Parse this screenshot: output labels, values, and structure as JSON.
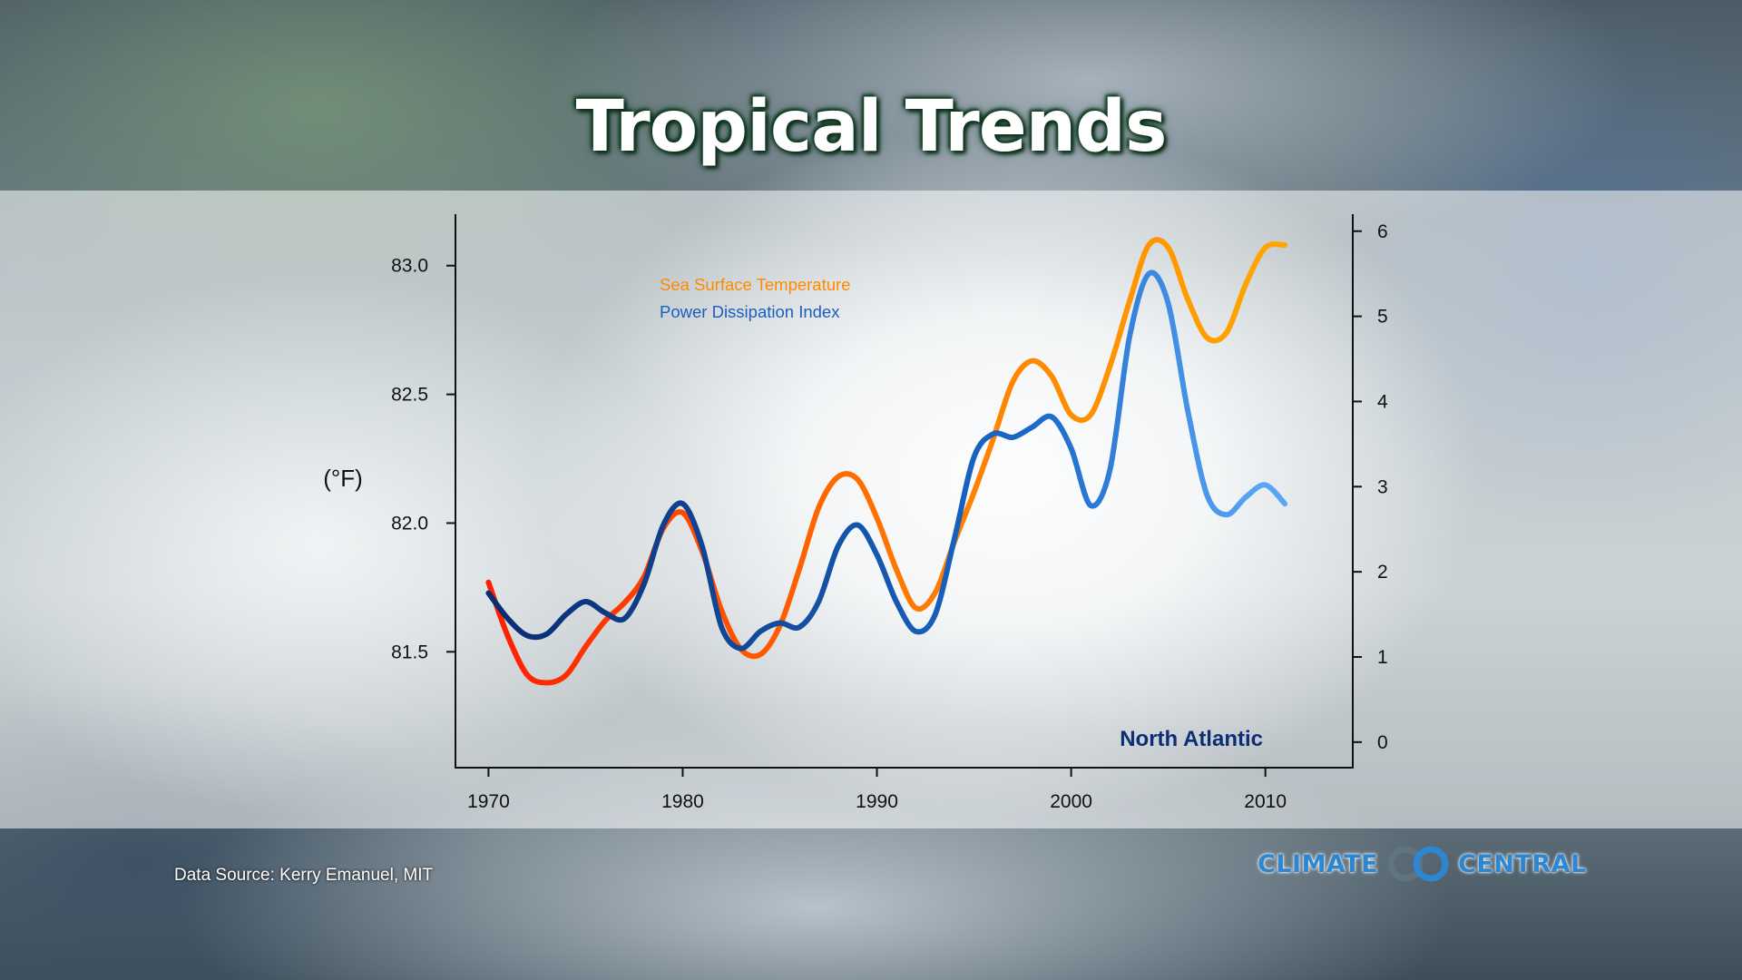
{
  "title": "Tropical Trends",
  "source": "Data Source: Kerry Emanuel, MIT",
  "logo": {
    "left": "CLIMATE",
    "right": "CENTRAL"
  },
  "colors": {
    "sst_start": "#ff1e00",
    "sst_end": "#ffa500",
    "pdi_start": "#0a2c70",
    "pdi_end": "#5aa5f5",
    "region": "#0d2d75"
  },
  "chart_data": {
    "type": "line",
    "region_label": "North Atlantic",
    "ylabel_left": "(°F)",
    "ylim_left": [
      81.05,
      83.2
    ],
    "yticks_left": [
      "81.5",
      "82.0",
      "82.5",
      "83.0"
    ],
    "ylim_right": [
      -0.3,
      6.2
    ],
    "yticks_right": [
      "0",
      "1",
      "2",
      "3",
      "4",
      "5",
      "6"
    ],
    "xlim": [
      1968.3,
      2014.5
    ],
    "xticks": [
      "1970",
      "1980",
      "1990",
      "2000",
      "2010"
    ],
    "legend": "top-left",
    "x": [
      1970,
      1971,
      1972,
      1973,
      1974,
      1975,
      1976,
      1977,
      1978,
      1979,
      1980,
      1981,
      1982,
      1983,
      1984,
      1985,
      1986,
      1987,
      1988,
      1989,
      1990,
      1991,
      1992,
      1993,
      1994,
      1995,
      1996,
      1997,
      1998,
      1999,
      2000,
      2001,
      2002,
      2003,
      2004,
      2005,
      2006,
      2007,
      2008,
      2009,
      2010,
      2011
    ],
    "series": [
      {
        "name": "Sea Surface Temperature",
        "axis": "left",
        "values": [
          81.77,
          81.56,
          81.41,
          81.38,
          81.41,
          81.52,
          81.62,
          81.69,
          81.79,
          81.98,
          82.04,
          81.89,
          81.66,
          81.51,
          81.49,
          81.6,
          81.82,
          82.06,
          82.18,
          82.17,
          82.02,
          81.82,
          81.67,
          81.73,
          81.93,
          82.12,
          82.33,
          82.55,
          82.63,
          82.57,
          82.42,
          82.42,
          82.61,
          82.86,
          83.08,
          83.07,
          82.87,
          82.72,
          82.74,
          82.93,
          83.07,
          83.08
        ]
      },
      {
        "name": "Power Dissipation Index",
        "axis": "right",
        "values": [
          1.75,
          1.45,
          1.25,
          1.27,
          1.5,
          1.65,
          1.52,
          1.45,
          1.85,
          2.55,
          2.8,
          2.3,
          1.35,
          1.1,
          1.3,
          1.4,
          1.35,
          1.65,
          2.3,
          2.55,
          2.2,
          1.65,
          1.3,
          1.5,
          2.4,
          3.35,
          3.62,
          3.58,
          3.7,
          3.82,
          3.45,
          2.78,
          3.2,
          4.75,
          5.5,
          5.15,
          3.9,
          2.9,
          2.67,
          2.88,
          3.02,
          2.8
        ]
      }
    ]
  }
}
